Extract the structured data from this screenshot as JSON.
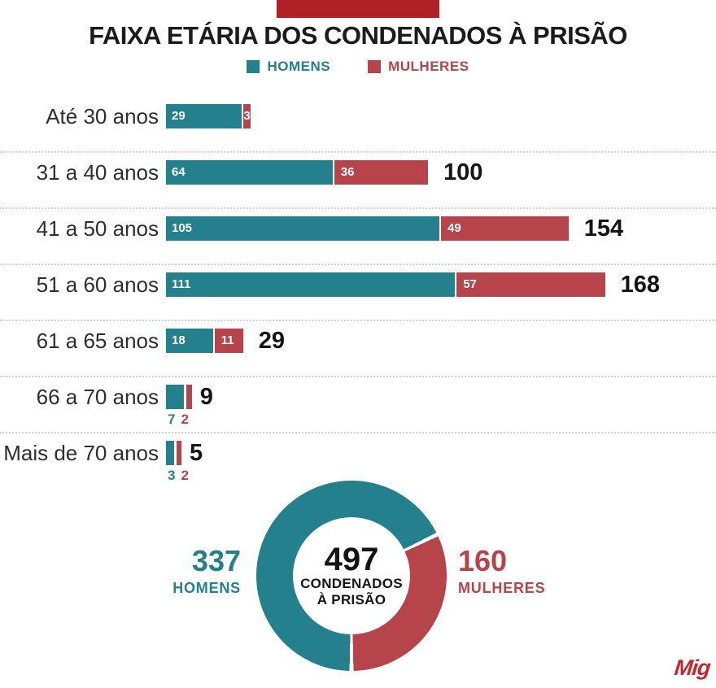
{
  "colors": {
    "teal": "#25808d",
    "red": "#b8444b",
    "banner": "#b02125",
    "separator": "#d2d2d2",
    "label_text": "#2e2e2e",
    "total_text": "#141414",
    "logo_red": "#c1272d"
  },
  "title": "FAIXA ETÁRIA DOS CONDENADOS À PRISÃO",
  "legend": [
    {
      "label": "HOMENS",
      "color": "#25808d"
    },
    {
      "label": "MULHERES",
      "color": "#b8444b"
    }
  ],
  "chart_data": {
    "type": "bar",
    "orientation": "horizontal",
    "stacked": true,
    "categories": [
      "Até 30 anos",
      "31 a 40 anos",
      "41 a 50 anos",
      "51 a 60 anos",
      "61 a 65 anos",
      "66 a 70 anos",
      "Mais de 70 anos"
    ],
    "series": [
      {
        "name": "HOMENS",
        "color": "#25808d",
        "values": [
          29,
          64,
          105,
          111,
          18,
          7,
          3
        ]
      },
      {
        "name": "MULHERES",
        "color": "#b8444b",
        "values": [
          3,
          36,
          49,
          57,
          11,
          2,
          2
        ]
      }
    ],
    "totals": [
      null,
      100,
      154,
      168,
      29,
      9,
      5
    ],
    "value_label_position": [
      "inside",
      "inside",
      "inside",
      "inside",
      "inside",
      "below",
      "below"
    ],
    "xlim": [
      0,
      168
    ],
    "grid": false,
    "legend_position": "top"
  },
  "donut": {
    "type": "pie",
    "segments": [
      {
        "label": "HOMENS",
        "value": 337,
        "color": "#25808d"
      },
      {
        "label": "MULHERES",
        "value": 160,
        "color": "#b8444b"
      }
    ],
    "center": {
      "value": "497",
      "label_line1": "CONDENADOS",
      "label_line2": "À PRISÃO"
    }
  },
  "logo": "Mig"
}
